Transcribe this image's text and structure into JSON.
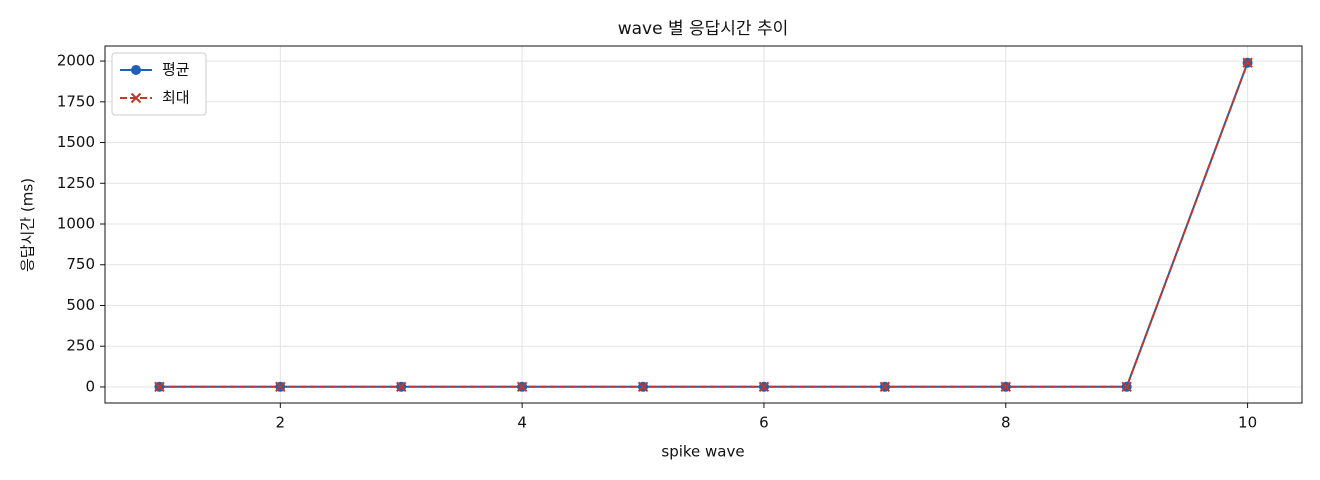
{
  "chart_data": {
    "type": "line",
    "title": "wave 별 응답시간 추이",
    "x_label": "spike wave",
    "y_label": "응답시간 (ms)",
    "x": [
      1,
      2,
      3,
      4,
      5,
      6,
      7,
      8,
      9,
      10
    ],
    "series": [
      {
        "name": "평균",
        "color": "#1f5fb4",
        "marker": "o",
        "dash": false,
        "values": [
          1,
          1,
          1,
          1,
          1,
          1,
          1,
          1,
          1,
          1990
        ]
      },
      {
        "name": "최대",
        "color": "#c0392b",
        "marker": "x",
        "dash": true,
        "values": [
          1,
          1,
          1,
          1,
          1,
          1,
          1,
          1,
          1,
          1990
        ]
      }
    ],
    "xlim": [
      0.55,
      10.45
    ],
    "xticks": [
      2,
      4,
      6,
      8,
      10
    ],
    "ylim": [
      -98.5,
      2092.5
    ],
    "yticks": [
      0,
      250,
      500,
      750,
      1000,
      1250,
      1500,
      1750,
      2000
    ],
    "grid": true,
    "legend": "upper left"
  }
}
